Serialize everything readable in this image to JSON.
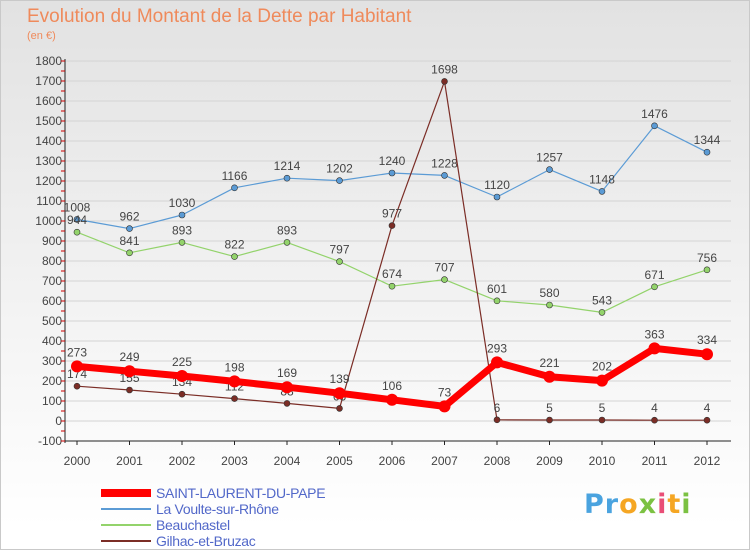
{
  "header": {
    "title": "Evolution du Montant de la Dette par Habitant",
    "unit": "(en €)"
  },
  "logo": {
    "text": "Proxiti"
  },
  "chart_data": {
    "type": "line",
    "title": "Evolution du Montant de la Dette par Habitant",
    "subtitle": "(en €)",
    "xlabel": "",
    "ylabel": "",
    "categories": [
      "2000",
      "2001",
      "2002",
      "2003",
      "2004",
      "2005",
      "2006",
      "2007",
      "2008",
      "2009",
      "2010",
      "2011",
      "2012"
    ],
    "ylim": [
      -100,
      1800
    ],
    "yticks": [
      -100,
      0,
      100,
      200,
      300,
      400,
      500,
      600,
      700,
      800,
      900,
      1000,
      1100,
      1200,
      1300,
      1400,
      1500,
      1600,
      1700,
      1800
    ],
    "grid": "horizontal",
    "legend_position": "bottom-left",
    "series": [
      {
        "name": "SAINT-LAURENT-DU-PAPE",
        "color": "#ff0000",
        "values": [
          273,
          249,
          225,
          198,
          169,
          139,
          106,
          73,
          293,
          221,
          202,
          363,
          334
        ],
        "labels": [
          "273",
          "249",
          "225",
          "198",
          "169",
          "139",
          "106",
          "73",
          "293",
          "221",
          "202",
          "363",
          "334"
        ]
      },
      {
        "name": "La Voulte-sur-Rhône",
        "color": "#5b9bd5",
        "values": [
          1008,
          962,
          1030,
          1166,
          1214,
          1202,
          1240,
          1228,
          1120,
          1257,
          1148,
          1476,
          1344
        ],
        "labels": [
          "1008",
          "962",
          "1030",
          "1166",
          "1214",
          "1202",
          "1240",
          "1228",
          "1120",
          "1257",
          "1148",
          "1476",
          "1344"
        ]
      },
      {
        "name": "Beauchastel",
        "color": "#93d36b",
        "values": [
          944,
          841,
          893,
          822,
          893,
          797,
          674,
          707,
          601,
          580,
          543,
          671,
          756
        ],
        "labels": [
          "944",
          "841",
          "893",
          "822",
          "893",
          "797",
          "674",
          "707",
          "601",
          "580",
          "543",
          "671",
          "756"
        ]
      },
      {
        "name": "Gilhac-et-Bruzac",
        "color": "#7b2d26",
        "values": [
          174,
          155,
          134,
          112,
          88,
          63,
          977,
          1698,
          6,
          5,
          5,
          4,
          4
        ],
        "labels": [
          "174",
          "155",
          "134",
          "112",
          "88",
          "63",
          "977",
          "1698",
          "6",
          "5",
          "5",
          "4",
          "4"
        ]
      }
    ]
  }
}
